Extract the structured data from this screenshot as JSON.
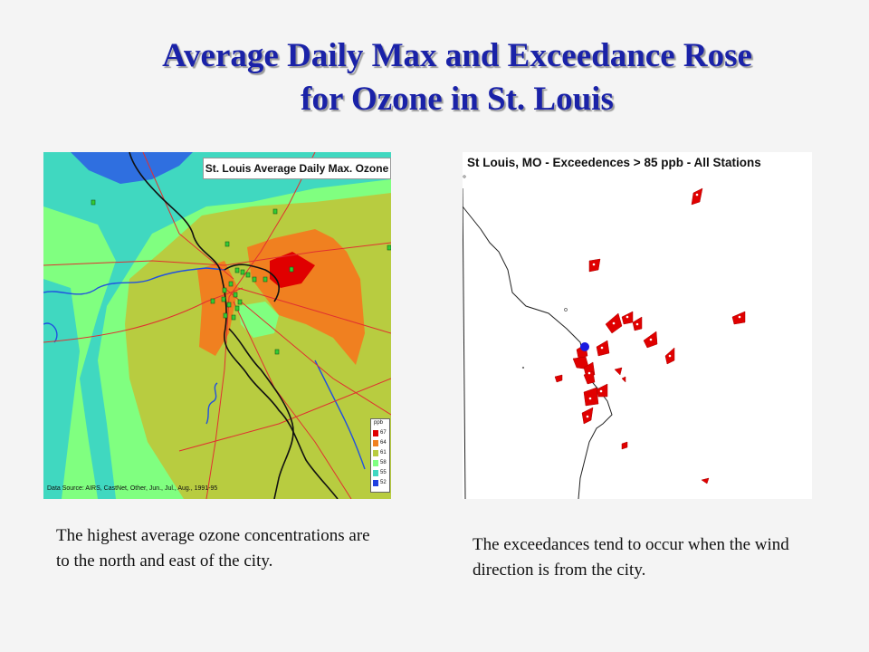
{
  "title": {
    "line1": "Average Daily Max and Exceedance Rose",
    "line2": "for Ozone in St. Louis"
  },
  "left_map": {
    "title": "St. Louis Average Daily Max. Ozone",
    "source": "Data Source: AIRS, CastNet, Other, Jun., Jul., Aug., 1991-95",
    "legend": {
      "title": "ppb",
      "entries": [
        {
          "label": "67",
          "color": "#e00000"
        },
        {
          "label": "64",
          "color": "#f08020"
        },
        {
          "label": "61",
          "color": "#b8cc40"
        },
        {
          "label": "58",
          "color": "#80ff80"
        },
        {
          "label": "55",
          "color": "#40d8c0"
        },
        {
          "label": "52",
          "color": "#2040e0"
        }
      ]
    }
  },
  "right_map": {
    "title": "St Louis, MO - Exceedences > 85 ppb - All Stations"
  },
  "captions": {
    "left": "The highest average ozone concentrations are to the north and east of the city.",
    "right": "The exceedances tend to occur when the wind direction is from the city."
  },
  "colors": {
    "title": "#1a22a8",
    "exceedance_marker": "#e00000",
    "station_marker": "#33cc33",
    "river": "#2050e0",
    "road": "#e03030"
  }
}
